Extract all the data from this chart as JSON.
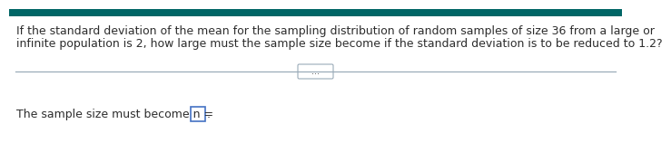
{
  "bg_color": "#ffffff",
  "top_bar_color": "#006666",
  "divider_color": "#9aabb8",
  "dots_text": "...",
  "text_color": "#2d2d2d",
  "font_size_question": 9.0,
  "font_size_answer": 9.0,
  "font_size_dots": 7.0,
  "box_edge_color": "#4472c4",
  "line1": "If the standard deviation of the mean for the sampling distribution of random samples of size 36 from a large or",
  "line2": "infinite population is 2, how large must the sample size become if the standard deviation is to be reduced to 1.2?",
  "answer_prefix": "The sample size must become n = ",
  "period": "."
}
